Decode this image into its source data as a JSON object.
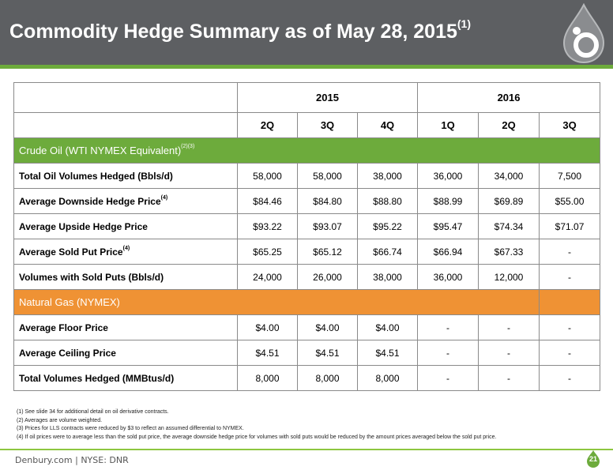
{
  "header": {
    "title": "Commodity Hedge Summary as of May 28, 2015",
    "title_sup": "(1)"
  },
  "table": {
    "years": [
      "2015",
      "2016"
    ],
    "quarters": [
      "2Q",
      "3Q",
      "4Q",
      "1Q",
      "2Q",
      "3Q"
    ],
    "oil_section": {
      "label": "Crude Oil (WTI NYMEX Equivalent)",
      "sup": "(2)(3)",
      "color": "#6dab3c",
      "rows": [
        {
          "label": "Total Oil Volumes Hedged (Bbls/d)",
          "sup": "",
          "values": [
            "58,000",
            "58,000",
            "38,000",
            "36,000",
            "34,000",
            "7,500"
          ]
        },
        {
          "label": "Average Downside Hedge Price",
          "sup": "(4)",
          "values": [
            "$84.46",
            "$84.80",
            "$88.80",
            "$88.99",
            "$69.89",
            "$55.00"
          ]
        },
        {
          "label": "Average Upside Hedge Price",
          "sup": "",
          "values": [
            "$93.22",
            "$93.07",
            "$95.22",
            "$95.47",
            "$74.34",
            "$71.07"
          ]
        },
        {
          "label": "Average Sold Put Price",
          "sup": "(4)",
          "values": [
            "$65.25",
            "$65.12",
            "$66.74",
            "$66.94",
            "$67.33",
            "-"
          ]
        },
        {
          "label": "Volumes with Sold Puts (Bbls/d)",
          "sup": "",
          "values": [
            "24,000",
            "26,000",
            "38,000",
            "36,000",
            "12,000",
            "-"
          ]
        }
      ]
    },
    "gas_section": {
      "label": "Natural Gas (NYMEX)",
      "color": "#ef9234",
      "rows": [
        {
          "label": "Average Floor Price",
          "values": [
            "$4.00",
            "$4.00",
            "$4.00",
            "-",
            "-",
            "-"
          ]
        },
        {
          "label": "Average Ceiling Price",
          "values": [
            "$4.51",
            "$4.51",
            "$4.51",
            "-",
            "-",
            "-"
          ]
        },
        {
          "label": "Total Volumes Hedged (MMBtus/d)",
          "values": [
            "8,000",
            "8,000",
            "8,000",
            "-",
            "-",
            "-"
          ]
        }
      ]
    }
  },
  "footnotes": [
    "(1)  See slide 34 for additional detail on oil derivative contracts.",
    "(2)  Averages are volume weighted.",
    "(3)  Prices for LLS contracts were reduced by $3 to reflect an assumed differential to NYMEX.",
    "(4)  If oil prices were to average less than the sold put price, the average downside hedge price for volumes with sold puts would be reduced by the amount prices averaged below the sold put price."
  ],
  "footer": {
    "text": "Denbury.com  |  NYSE: DNR",
    "page_number": "21"
  },
  "colors": {
    "header_bg": "#5d5f62",
    "accent_green": "#6dab3c",
    "accent_orange": "#ef9234"
  },
  "icons": {
    "logo": "denbury-drop-logo-icon",
    "page_badge": "page-number-drop-icon"
  }
}
